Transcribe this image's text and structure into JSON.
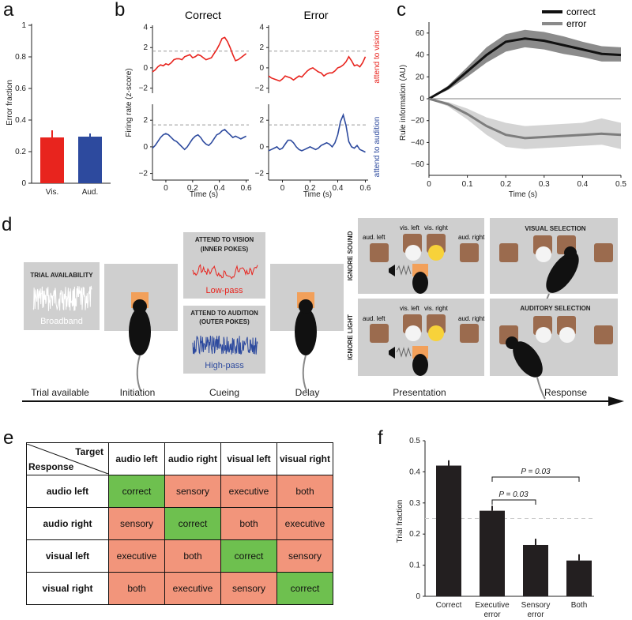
{
  "panel_labels": {
    "a": "a",
    "b": "b",
    "c": "c",
    "d": "d",
    "e": "e",
    "f": "f"
  },
  "chart_data": [
    {
      "id": "a",
      "type": "bar",
      "title": "",
      "ylabel": "Error fraction",
      "xlabel": "",
      "categories": [
        "Vis.",
        "Aud."
      ],
      "values": [
        0.29,
        0.295
      ],
      "errors": [
        0.045,
        0.02
      ],
      "colors": [
        "#e8241e",
        "#2d4a9e"
      ],
      "ylim": [
        0,
        1
      ],
      "yticks": [
        "0",
        "0.2",
        "0.4",
        "0.6",
        "0.8",
        "1"
      ]
    },
    {
      "id": "b",
      "type": "line",
      "columns": [
        "Correct",
        "Error"
      ],
      "rows": [
        "attend to vision",
        "attend to audition"
      ],
      "ylabel": "Firing rate (z-score)",
      "xlabel": "Time (s)",
      "xticks": [
        "0",
        "0.2",
        "0.4",
        "0.6"
      ],
      "yticks_top": [
        "−2",
        "0",
        "2",
        "4"
      ],
      "yticks_bottom": [
        "−2",
        "0",
        "2"
      ],
      "threshold": 1.65,
      "x": [
        -0.1,
        -0.08,
        -0.06,
        -0.04,
        -0.02,
        0,
        0.02,
        0.04,
        0.06,
        0.08,
        0.1,
        0.12,
        0.14,
        0.16,
        0.18,
        0.2,
        0.22,
        0.24,
        0.26,
        0.28,
        0.3,
        0.32,
        0.34,
        0.36,
        0.38,
        0.4,
        0.42,
        0.44,
        0.46,
        0.48,
        0.5,
        0.52,
        0.54,
        0.56,
        0.58,
        0.6
      ],
      "series": [
        {
          "name": "Correct / vision",
          "color": "#e8241e",
          "values": [
            -0.4,
            -0.2,
            0.1,
            0.3,
            0.2,
            0.4,
            0.3,
            0.5,
            0.8,
            0.9,
            0.9,
            0.8,
            1.1,
            1.2,
            1.3,
            1.0,
            1.1,
            1.3,
            1.2,
            1.0,
            0.8,
            0.9,
            1.0,
            1.4,
            1.8,
            2.3,
            2.9,
            3.0,
            2.6,
            2.0,
            1.3,
            0.7,
            0.8,
            1.0,
            1.2,
            1.4
          ]
        },
        {
          "name": "Error / vision",
          "color": "#e8241e",
          "values": [
            -0.8,
            -1.0,
            -1.1,
            -1.2,
            -1.3,
            -1.1,
            -0.8,
            -0.9,
            -1.0,
            -1.2,
            -1.0,
            -0.8,
            -0.9,
            -0.6,
            -0.3,
            -0.1,
            0.0,
            -0.2,
            -0.4,
            -0.5,
            -0.8,
            -0.6,
            -0.5,
            -0.5,
            -0.3,
            0.0,
            0.1,
            0.3,
            0.6,
            1.1,
            0.7,
            0.2,
            0.3,
            0.1,
            0.5,
            1.1
          ]
        },
        {
          "name": "Correct / audition",
          "color": "#2d4a9e",
          "values": [
            -0.1,
            0.1,
            0.4,
            0.7,
            0.9,
            1.0,
            0.9,
            0.7,
            0.5,
            0.4,
            0.2,
            0.0,
            -0.2,
            0.0,
            0.3,
            0.6,
            0.8,
            0.9,
            0.7,
            0.4,
            0.2,
            0.1,
            0.3,
            0.6,
            0.9,
            1.0,
            1.2,
            1.3,
            1.1,
            0.9,
            0.7,
            0.8,
            0.7,
            0.6,
            0.7,
            0.8
          ]
        },
        {
          "name": "Error / audition",
          "color": "#2d4a9e",
          "values": [
            -0.3,
            -0.2,
            -0.1,
            0.0,
            -0.2,
            -0.1,
            0.2,
            0.5,
            0.5,
            0.3,
            0.0,
            -0.2,
            -0.3,
            -0.2,
            -0.1,
            0.0,
            -0.1,
            -0.2,
            -0.1,
            0.1,
            0.2,
            0.3,
            0.2,
            0.0,
            0.3,
            0.9,
            1.9,
            2.4,
            1.6,
            0.4,
            0.0,
            -0.1,
            0.1,
            -0.2,
            -0.3,
            -0.4
          ]
        }
      ]
    },
    {
      "id": "c",
      "type": "area",
      "ylabel": "Rule information (AU)",
      "xlabel": "Time (s)",
      "xlim": [
        0,
        0.5
      ],
      "ylim": [
        -70,
        70
      ],
      "xticks": [
        "0",
        "0.1",
        "0.2",
        "0.3",
        "0.4",
        "0.5"
      ],
      "yticks": [
        "−60",
        "−40",
        "−20",
        "0",
        "20",
        "40",
        "60"
      ],
      "x": [
        0,
        0.05,
        0.1,
        0.15,
        0.2,
        0.25,
        0.3,
        0.35,
        0.4,
        0.45,
        0.5
      ],
      "series": [
        {
          "name": "correct",
          "color": "#111111",
          "band_color": "#777777",
          "values": [
            0,
            10,
            25,
            40,
            52,
            55,
            53,
            49,
            45,
            41,
            40
          ],
          "lower": [
            0,
            8,
            20,
            33,
            43,
            47,
            45,
            41,
            38,
            34,
            34
          ],
          "upper": [
            0,
            12,
            29,
            47,
            59,
            63,
            61,
            57,
            52,
            48,
            47
          ]
        },
        {
          "name": "error",
          "color": "#7d7d7d",
          "band_color": "#cccccc",
          "values": [
            0,
            -5,
            -14,
            -25,
            -33,
            -36,
            -35,
            -34,
            -33,
            -32,
            -33
          ],
          "lower": [
            0,
            -7,
            -19,
            -33,
            -44,
            -46,
            -45,
            -44,
            -43,
            -42,
            -46
          ],
          "upper": [
            0,
            -3,
            -9,
            -17,
            -22,
            -25,
            -24,
            -23,
            -22,
            -18,
            -22
          ]
        }
      ]
    },
    {
      "id": "f",
      "type": "bar",
      "ylabel": "Trial fraction",
      "categories": [
        "Correct",
        "Executive\nerror",
        "Sensory\nerror",
        "Both"
      ],
      "values": [
        0.42,
        0.275,
        0.165,
        0.115
      ],
      "errors": [
        0.017,
        0.016,
        0.02,
        0.02
      ],
      "color": "#231f20",
      "ylim": [
        0,
        0.5
      ],
      "yticks": [
        "0",
        "0.1",
        "0.2",
        "0.3",
        "0.4",
        "0.5"
      ],
      "chance_line": 0.25,
      "annotations": [
        "P = 0.03",
        "P = 0.03"
      ]
    }
  ],
  "diagram_d": {
    "trial_box": {
      "title": "TRIAL AVAILABILITY",
      "subtitle": "Broadband"
    },
    "vision_box": {
      "title": "ATTEND TO VISION",
      "sub": "(INNER POKES)",
      "filter": "Low-pass"
    },
    "audition_box": {
      "title": "ATTEND TO AUDITION",
      "sub": "(OUTER POKES)",
      "filter": "High-pass"
    },
    "side_labels": [
      "IGNORE SOUND",
      "IGNORE LIGHT"
    ],
    "port_labels": {
      "aud_left": "aud. left",
      "vis_left": "vis. left",
      "vis_right": "vis. right",
      "aud_right": "aud. right"
    },
    "selection_labels": [
      "VISUAL SELECTION",
      "AUDITORY SELECTION"
    ],
    "stages": [
      "Trial available",
      "Initiation",
      "Cueing",
      "Delay",
      "Presentation",
      "Response"
    ]
  },
  "table_e": {
    "corner_target": "Target",
    "corner_response": "Response",
    "columns": [
      "audio left",
      "audio right",
      "visual left",
      "visual right"
    ],
    "rows": [
      {
        "label": "audio left",
        "cells": [
          "correct",
          "sensory",
          "executive",
          "both"
        ]
      },
      {
        "label": "audio right",
        "cells": [
          "sensory",
          "correct",
          "both",
          "executive"
        ]
      },
      {
        "label": "visual left",
        "cells": [
          "executive",
          "both",
          "correct",
          "sensory"
        ]
      },
      {
        "label": "visual right",
        "cells": [
          "both",
          "executive",
          "sensory",
          "correct"
        ]
      }
    ]
  },
  "colors": {
    "red": "#e8241e",
    "blue": "#2d4a9e",
    "green": "#6ec04f",
    "salmon": "#f2957b",
    "orange": "#f2a05a"
  }
}
